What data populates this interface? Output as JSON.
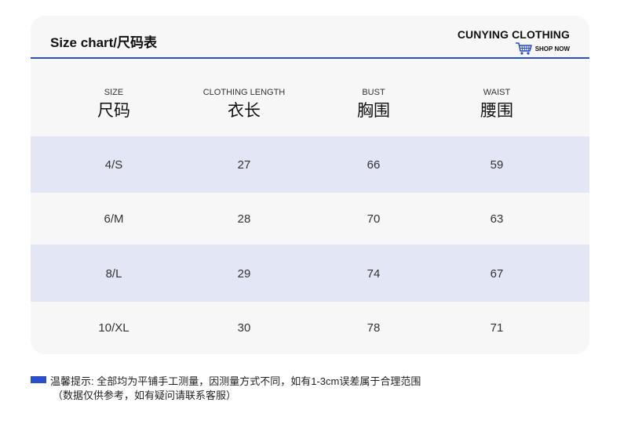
{
  "header": {
    "title": "Size chart/尺码表",
    "brand": "CUNYING CLOTHING",
    "shop_label": "SHOP NOW"
  },
  "columns": [
    {
      "en": "SIZE",
      "cn": "尺码"
    },
    {
      "en": "CLOTHING LENGTH",
      "cn": "衣长"
    },
    {
      "en": "BUST",
      "cn": "胸围"
    },
    {
      "en": "WAIST",
      "cn": "腰围"
    }
  ],
  "rows": [
    [
      "4/S",
      "27",
      "66",
      "59"
    ],
    [
      "6/M",
      "28",
      "70",
      "63"
    ],
    [
      "8/L",
      "29",
      "74",
      "67"
    ],
    [
      "10/XL",
      "30",
      "78",
      "71"
    ]
  ],
  "note": {
    "line1": "温馨提示: 全部均为平铺手工测量，因测量方式不同，如有1-3cm误差属于合理范围",
    "line2": "（数据仅供参考，如有疑问请联系客服）"
  },
  "colors": {
    "accent": "#2a4fc8",
    "row_shade": "#e3e7f5",
    "card_bg": "#f7f7f7"
  },
  "icons": {
    "cart": "shopping-cart-icon"
  }
}
